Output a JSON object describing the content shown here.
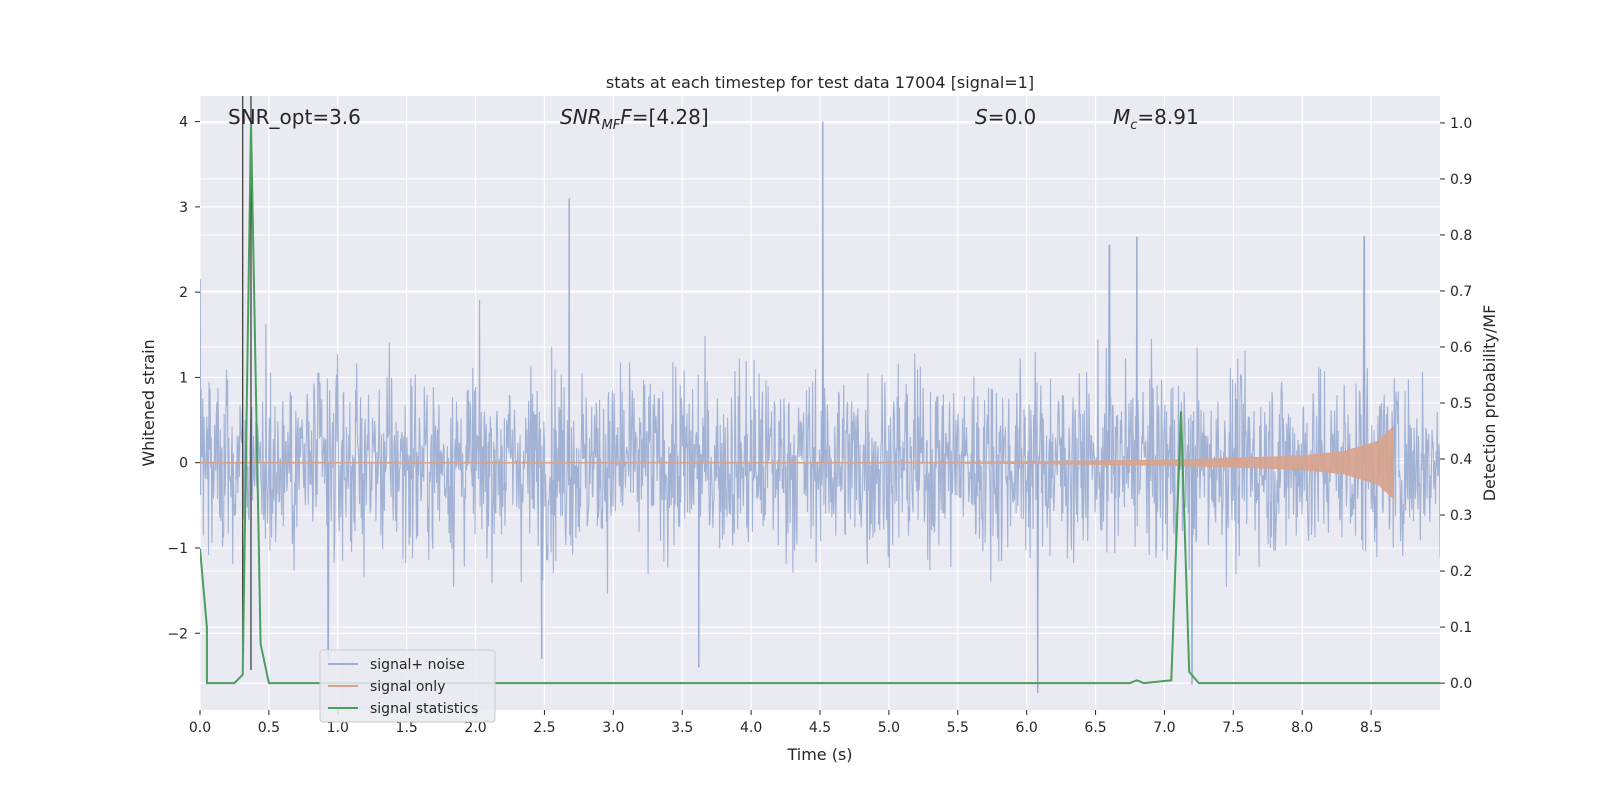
{
  "chart_data": {
    "type": "line",
    "title": "stats at each timestep for test data 17004 [signal=1]",
    "xlabel": "Time (s)",
    "ylabel_left": "Whitened strain",
    "ylabel_right": "Detection probability/MF",
    "xlim": [
      0.0,
      9.0
    ],
    "ylim_left": [
      -2.9,
      4.3
    ],
    "ylim_right": [
      -0.048,
      1.048
    ],
    "x_ticks": [
      "0.0",
      "0.5",
      "1.0",
      "1.5",
      "2.0",
      "2.5",
      "3.0",
      "3.5",
      "4.0",
      "4.5",
      "5.0",
      "5.5",
      "6.0",
      "6.5",
      "7.0",
      "7.5",
      "8.0",
      "8.5"
    ],
    "y_left_ticks": [
      "4",
      "3",
      "2",
      "1",
      "0",
      "−1",
      "−2"
    ],
    "y_right_ticks": [
      "1.0",
      "0.9",
      "0.8",
      "0.7",
      "0.6",
      "0.5",
      "0.4",
      "0.3",
      "0.2",
      "0.1",
      "0.0"
    ],
    "grid": true,
    "legend": "lower-left",
    "annotations": {
      "snr_opt": "SNR_opt=3.6",
      "snr_mf_name": "SNR",
      "snr_mf_sub": "MF",
      "snr_mf_value": "=[4.28]",
      "s_name": "S",
      "s_value": "=0.0",
      "mc_name": "M",
      "mc_sub": "c",
      "mc_value": "=8.91"
    },
    "vertical_lines_x": [
      0.31,
      0.37
    ],
    "series": [
      {
        "name": "signal+ noise",
        "color": "#9aacd1",
        "noise_peaks": [
          {
            "x": 0.0,
            "y": 2.15
          },
          {
            "x": 2.68,
            "y": 3.1
          },
          {
            "x": 4.52,
            "y": 4.0
          },
          {
            "x": 6.6,
            "y": 2.55
          },
          {
            "x": 6.8,
            "y": 2.65
          },
          {
            "x": 8.45,
            "y": 2.65
          },
          {
            "x": 6.08,
            "y": -2.7
          },
          {
            "x": 3.62,
            "y": -2.4
          },
          {
            "x": 2.48,
            "y": -2.3
          },
          {
            "x": 0.93,
            "y": -2.3
          },
          {
            "x": 7.2,
            "y": -2.6
          }
        ]
      },
      {
        "name": "signal only",
        "color": "#d8a38c",
        "envelope": [
          {
            "x": 5.0,
            "y": 0.0
          },
          {
            "x": 6.0,
            "y": 0.01
          },
          {
            "x": 7.0,
            "y": 0.03
          },
          {
            "x": 7.5,
            "y": 0.05
          },
          {
            "x": 8.0,
            "y": 0.08
          },
          {
            "x": 8.3,
            "y": 0.13
          },
          {
            "x": 8.55,
            "y": 0.25
          },
          {
            "x": 8.66,
            "y": 0.42
          }
        ]
      },
      {
        "name": "signal statistics",
        "color": "#4c9e5e",
        "points": [
          {
            "x": 0.0,
            "y": 0.24
          },
          {
            "x": 0.05,
            "y": 0.1
          },
          {
            "x": 0.05,
            "y": 0.0
          },
          {
            "x": 0.25,
            "y": 0.0
          },
          {
            "x": 0.31,
            "y": 0.015
          },
          {
            "x": 0.37,
            "y": 1.0
          },
          {
            "x": 0.44,
            "y": 0.07
          },
          {
            "x": 0.5,
            "y": 0.0
          },
          {
            "x": 6.75,
            "y": 0.0
          },
          {
            "x": 6.8,
            "y": 0.005
          },
          {
            "x": 6.85,
            "y": 0.0
          },
          {
            "x": 7.05,
            "y": 0.005
          },
          {
            "x": 7.12,
            "y": 0.485
          },
          {
            "x": 7.18,
            "y": 0.02
          },
          {
            "x": 7.25,
            "y": 0.0
          },
          {
            "x": 9.0,
            "y": 0.0
          }
        ]
      }
    ]
  }
}
